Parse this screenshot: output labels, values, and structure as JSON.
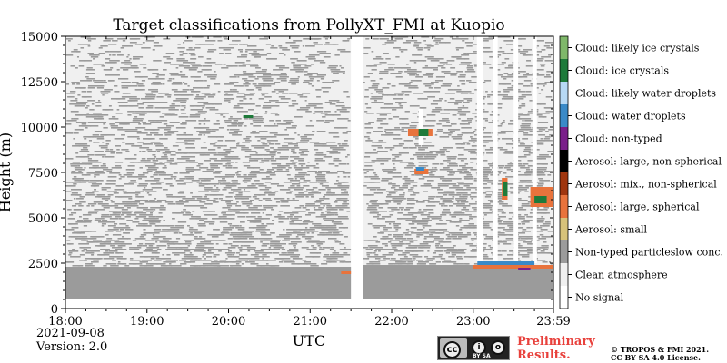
{
  "chart_data": {
    "type": "heatmap",
    "title": "Target classifications from PollyXT_FMI at Kuopio",
    "xlabel": "UTC",
    "ylabel": "Height (m)",
    "x_ticks": [
      "18:00",
      "19:00",
      "20:00",
      "21:00",
      "22:00",
      "23:00",
      "23:59"
    ],
    "x_tick_hours": [
      0,
      1,
      2,
      3,
      4,
      5,
      5.983
    ],
    "y_ticks": [
      0,
      2500,
      5000,
      7500,
      10000,
      12500,
      15000
    ],
    "ylim": [
      0,
      15000
    ],
    "xlim_hours_from_start": [
      0,
      5.983
    ],
    "categories": [
      {
        "label": "No signal",
        "color": "#ffffff"
      },
      {
        "label": "Clean atmosphere",
        "color": "#f0f0f0"
      },
      {
        "label": "Non-typed particleslow conc.",
        "color": "#9b9b9b"
      },
      {
        "label": "Aerosol: small",
        "color": "#d7c27a"
      },
      {
        "label": "Aerosol: large, spherical",
        "color": "#e8733c"
      },
      {
        "label": "Aerosol: mix., non-spherical",
        "color": "#a0360f"
      },
      {
        "label": "Aerosol: large, non-spherical",
        "color": "#000000"
      },
      {
        "label": "Cloud: non-typed",
        "color": "#7a1f8a"
      },
      {
        "label": "Cloud: water droplets",
        "color": "#3a8ac8"
      },
      {
        "label": "Cloud: likely water droplets",
        "color": "#b7d9f5"
      },
      {
        "label": "Cloud: ice crystals",
        "color": "#1e7a3a"
      },
      {
        "label": "Cloud: likely ice crystals",
        "color": "#7fb86a"
      }
    ],
    "no_signal_gaps_hours": [
      [
        3.5,
        3.65
      ]
    ],
    "columns": [
      {
        "from_hours": 0,
        "to_hours": 3.5,
        "low_conc_top_m": 2300,
        "noise_top_m": 15000
      },
      {
        "from_hours": 3.65,
        "to_hours": 5.983,
        "low_conc_top_m": 2400,
        "noise_top_m": 15000
      }
    ],
    "layers": [
      {
        "category": "Aerosol: large, spherical",
        "from_hours": 5.0,
        "to_hours": 5.98,
        "bottom_m": 2200,
        "top_m": 2400
      },
      {
        "category": "Cloud: water droplets",
        "from_hours": 5.05,
        "to_hours": 5.75,
        "bottom_m": 2400,
        "top_m": 2600
      },
      {
        "category": "Aerosol: large, spherical",
        "from_hours": 3.38,
        "to_hours": 3.5,
        "bottom_m": 1900,
        "top_m": 2050
      },
      {
        "category": "Aerosol: large, spherical",
        "from_hours": 4.2,
        "to_hours": 4.5,
        "bottom_m": 9500,
        "top_m": 9900
      },
      {
        "category": "Cloud: ice crystals",
        "from_hours": 4.33,
        "to_hours": 4.45,
        "bottom_m": 9500,
        "top_m": 9900
      },
      {
        "category": "Aerosol: large, spherical",
        "from_hours": 4.28,
        "to_hours": 4.45,
        "bottom_m": 7400,
        "top_m": 7700
      },
      {
        "category": "Cloud: water droplets",
        "from_hours": 4.3,
        "to_hours": 4.4,
        "bottom_m": 7600,
        "top_m": 7800
      },
      {
        "category": "Aerosol: large, spherical",
        "from_hours": 5.35,
        "to_hours": 5.42,
        "bottom_m": 6000,
        "top_m": 7200
      },
      {
        "category": "Cloud: ice crystals",
        "from_hours": 5.36,
        "to_hours": 5.42,
        "bottom_m": 6200,
        "top_m": 7000
      },
      {
        "category": "Aerosol: large, spherical",
        "from_hours": 5.7,
        "to_hours": 5.98,
        "bottom_m": 5600,
        "top_m": 6700
      },
      {
        "category": "Cloud: ice crystals",
        "from_hours": 5.75,
        "to_hours": 5.9,
        "bottom_m": 5800,
        "top_m": 6200
      },
      {
        "category": "Cloud: ice crystals",
        "from_hours": 2.18,
        "to_hours": 2.3,
        "bottom_m": 10500,
        "top_m": 10650
      },
      {
        "category": "Cloud: non-typed",
        "from_hours": 5.55,
        "to_hours": 5.7,
        "bottom_m": 2150,
        "top_m": 2250
      }
    ]
  },
  "footer": {
    "date": "2021-09-08",
    "version": "Version: 2.0",
    "preliminary_line1": "Preliminary",
    "preliminary_line2": "Results.",
    "copyright_line1": "© TROPOS & FMI 2021.",
    "copyright_line2": "CC BY SA 4.0 License.",
    "license_badge": "BY SA"
  }
}
